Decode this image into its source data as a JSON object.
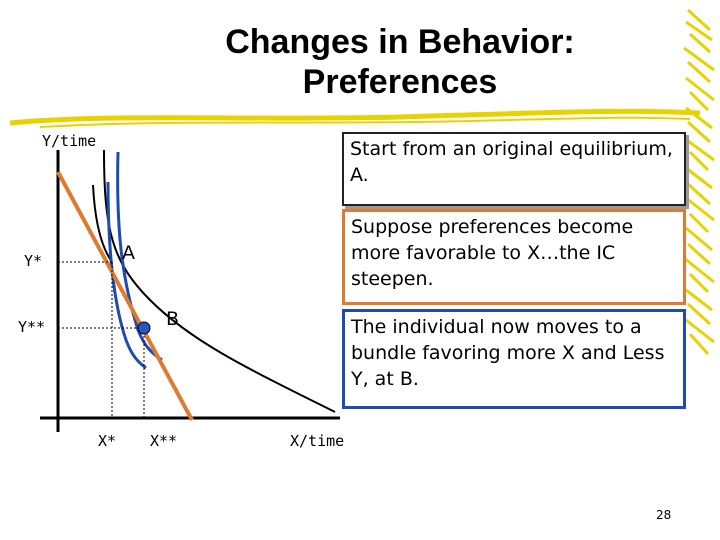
{
  "slide": {
    "title_line1": "Changes in Behavior:",
    "title_line2": "Preferences",
    "page_number": "28"
  },
  "graph": {
    "y_axis_label": "Y/time",
    "x_axis_label": "X/time",
    "y_star": "Y*",
    "y_double_star": "Y**",
    "x_star": "X*",
    "x_double_star": "X**",
    "point_a": "A",
    "point_b": "B"
  },
  "boxes": [
    "Start from an original equilibrium, A.",
    "Suppose preferences become more favorable to X…the IC steepen.",
    "The individual now moves to a bundle favoring more X and Less Y, at B."
  ],
  "colors": {
    "budget_line": "#e07a30",
    "new_ic": "#1f4ab0",
    "accent_yellow": "#e8d200",
    "point_b": "#2855c8"
  }
}
